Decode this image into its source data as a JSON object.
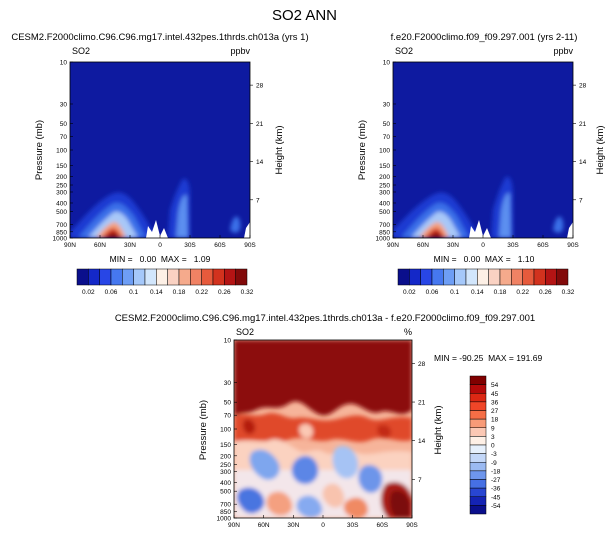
{
  "page_title": "SO2 ANN",
  "chart_data": [
    {
      "id": "panel-left",
      "type": "heatmap",
      "title": "CESM2.F2000climo.C96.C96.mg17.intel.432pes.1thrds.ch013a (yrs 1)",
      "variable_label": "SO2",
      "units_label": "ppbv",
      "ylabel": "Pressure (mb)",
      "ylabel_right": "Height (km)",
      "xlabel": "",
      "y_ticks": [
        "10",
        "30",
        "50",
        "70",
        "100",
        "150",
        "200",
        "250",
        "300",
        "400",
        "500",
        "700",
        "850",
        "1000"
      ],
      "height_ticks": [
        "28",
        "21",
        "14",
        "7"
      ],
      "x_ticks": [
        "90N",
        "60N",
        "30N",
        "0",
        "30S",
        "60S",
        "90S"
      ],
      "stats": "MIN =   0.00  MAX =   1.09",
      "colorbar_labels": [
        "0.02",
        "0.06",
        "0.1",
        "0.14",
        "0.18",
        "0.22",
        "0.26",
        "0.32"
      ],
      "ylim": [
        1000,
        10
      ],
      "xlim": [
        90,
        -90
      ],
      "max_value": 1.09,
      "min_value": 0.0,
      "hotspot_note": "maximum near surface around 30N"
    },
    {
      "id": "panel-right",
      "type": "heatmap",
      "title": "f.e20.F2000climo.f09_f09.297.001 (yrs 2-11)",
      "variable_label": "SO2",
      "units_label": "ppbv",
      "ylabel": "Pressure (mb)",
      "ylabel_right": "Height (km)",
      "xlabel": "",
      "y_ticks": [
        "10",
        "30",
        "50",
        "70",
        "100",
        "150",
        "200",
        "250",
        "300",
        "400",
        "500",
        "700",
        "850",
        "1000"
      ],
      "height_ticks": [
        "28",
        "21",
        "14",
        "7"
      ],
      "x_ticks": [
        "90N",
        "60N",
        "30N",
        "0",
        "30S",
        "60S",
        "90S"
      ],
      "stats": "MIN =   0.00  MAX =   1.10",
      "colorbar_labels": [
        "0.02",
        "0.06",
        "0.1",
        "0.14",
        "0.18",
        "0.22",
        "0.26",
        "0.32"
      ],
      "ylim": [
        1000,
        10
      ],
      "xlim": [
        90,
        -90
      ],
      "max_value": 1.1,
      "min_value": 0.0
    },
    {
      "id": "panel-diff",
      "type": "heatmap",
      "title": "CESM2.F2000climo.C96.C96.mg17.intel.432pes.1thrds.ch013a - f.e20.F2000climo.f09_f09.297.001",
      "variable_label": "SO2",
      "units_label": "%",
      "ylabel": "Pressure (mb)",
      "ylabel_right": "Height (km)",
      "xlabel": "",
      "y_ticks": [
        "10",
        "30",
        "50",
        "70",
        "100",
        "150",
        "200",
        "250",
        "300",
        "400",
        "500",
        "700",
        "850",
        "1000"
      ],
      "height_ticks": [
        "28",
        "21",
        "14",
        "7"
      ],
      "x_ticks": [
        "90N",
        "60N",
        "30N",
        "0",
        "30S",
        "60S",
        "90S"
      ],
      "stats": "MIN = -90.25  MAX = 191.69",
      "colorbar_labels": [
        "54",
        "45",
        "36",
        "27",
        "18",
        "9",
        "3",
        "0",
        "-3",
        "-9",
        "-18",
        "-27",
        "-36",
        "-45",
        "-54"
      ],
      "ylim": [
        1000,
        10
      ],
      "xlim": [
        90,
        -90
      ],
      "max_value": 191.69,
      "min_value": -90.25
    }
  ],
  "colors": {
    "horiz_colorbar": [
      "#0a0f8c",
      "#1428c8",
      "#2846e6",
      "#4678f0",
      "#6e9ef5",
      "#a5c8fa",
      "#d2e6fc",
      "#fdf0e6",
      "#fad2c3",
      "#f5aa8c",
      "#f08264",
      "#e65a3c",
      "#d2321e",
      "#b41414",
      "#820a0a"
    ],
    "vert_colorbar": [
      "#800000",
      "#b40a0a",
      "#dc2814",
      "#f04628",
      "#f56e46",
      "#f89b78",
      "#fbc8b4",
      "#fef0e6",
      "#e6f0fc",
      "#c3d7f8",
      "#9bbaf2",
      "#6e96ec",
      "#4670e4",
      "#2846d2",
      "#1423b4",
      "#0a0f8c"
    ],
    "background_blue": "#0e1aa0",
    "diff_red": "#8c0a0a"
  }
}
